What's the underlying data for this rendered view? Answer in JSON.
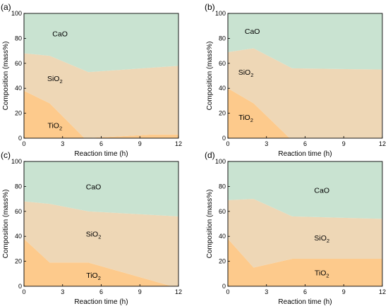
{
  "chart_data": [
    {
      "type": "area",
      "panel_label": "(a)",
      "xlabel": "Reaction time (h)",
      "ylabel": "Composition (mass%)",
      "xlim": [
        0,
        12
      ],
      "ylim": [
        0,
        100
      ],
      "xticks": [
        0,
        3,
        6,
        9,
        12
      ],
      "yticks": [
        0,
        20,
        40,
        60,
        80,
        100
      ],
      "stack_order": [
        "TiO2",
        "SiO2",
        "CaO"
      ],
      "series": [
        {
          "name": "TiO2",
          "label_main": "TiO",
          "label_sub": "2",
          "color": "#FDCA8C",
          "x": [
            0,
            2,
            4.7,
            10,
            12
          ],
          "values": [
            38,
            28,
            0,
            3,
            3
          ]
        },
        {
          "name": "SiO2",
          "label_main": "SiO",
          "label_sub": "2",
          "color": "#EED7B6",
          "x": [
            0,
            2,
            5,
            12
          ],
          "values": [
            68,
            66,
            53,
            58
          ]
        },
        {
          "name": "CaO",
          "label_main": "CaO",
          "label_sub": "",
          "color": "#C9E3D1",
          "x": [
            0,
            12
          ],
          "values": [
            100,
            100
          ]
        }
      ],
      "labels_at": {
        "CaO": [
          2.8,
          84
        ],
        "SiO2": [
          2.4,
          48
        ],
        "TiO2": [
          2.4,
          10.5
        ]
      }
    },
    {
      "type": "area",
      "panel_label": "(b)",
      "xlabel": "Reaction time (h)",
      "ylabel": "Composition (mass%)",
      "xlim": [
        0,
        12
      ],
      "ylim": [
        0,
        100
      ],
      "xticks": [
        0,
        3,
        6,
        9,
        12
      ],
      "yticks": [
        0,
        20,
        40,
        60,
        80,
        100
      ],
      "stack_order": [
        "TiO2",
        "SiO2",
        "CaO"
      ],
      "series": [
        {
          "name": "TiO2",
          "label_main": "TiO",
          "label_sub": "2",
          "color": "#FDCA8C",
          "x": [
            0,
            2,
            4.8,
            12
          ],
          "values": [
            40,
            28,
            0,
            0
          ]
        },
        {
          "name": "SiO2",
          "label_main": "SiO",
          "label_sub": "2",
          "color": "#EED7B6",
          "x": [
            0,
            2,
            5,
            12
          ],
          "values": [
            69,
            72,
            56,
            55
          ]
        },
        {
          "name": "CaO",
          "label_main": "CaO",
          "label_sub": "",
          "color": "#C9E3D1",
          "x": [
            0,
            12
          ],
          "values": [
            100,
            100
          ]
        }
      ],
      "labels_at": {
        "CaO": [
          1.9,
          86
        ],
        "SiO2": [
          1.4,
          53
        ],
        "TiO2": [
          1.4,
          17
        ]
      }
    },
    {
      "type": "area",
      "panel_label": "(c)",
      "xlabel": "Reaction time (h)",
      "ylabel": "Composition (mass%)",
      "xlim": [
        0,
        12
      ],
      "ylim": [
        0,
        100
      ],
      "xticks": [
        0,
        3,
        6,
        9,
        12
      ],
      "yticks": [
        0,
        20,
        40,
        60,
        80,
        100
      ],
      "stack_order": [
        "TiO2",
        "SiO2",
        "CaO"
      ],
      "series": [
        {
          "name": "TiO2",
          "label_main": "TiO",
          "label_sub": "2",
          "color": "#FDCA8C",
          "x": [
            0,
            2,
            5,
            11.5,
            12
          ],
          "values": [
            38,
            19,
            19,
            0,
            0
          ]
        },
        {
          "name": "SiO2",
          "label_main": "SiO",
          "label_sub": "2",
          "color": "#EED7B6",
          "x": [
            0,
            2,
            5,
            12
          ],
          "values": [
            68,
            66,
            60,
            56
          ]
        },
        {
          "name": "CaO",
          "label_main": "CaO",
          "label_sub": "",
          "color": "#C9E3D1",
          "x": [
            0,
            12
          ],
          "values": [
            100,
            100
          ]
        }
      ],
      "labels_at": {
        "CaO": [
          5.4,
          80
        ],
        "SiO2": [
          5.4,
          42
        ],
        "TiO2": [
          5.4,
          9
        ]
      }
    },
    {
      "type": "area",
      "panel_label": "(d)",
      "xlabel": "Reaction time (h)",
      "ylabel": "Composition (mass%)",
      "xlim": [
        0,
        12
      ],
      "ylim": [
        0,
        100
      ],
      "xticks": [
        0,
        3,
        6,
        9,
        12
      ],
      "yticks": [
        0,
        20,
        40,
        60,
        80,
        100
      ],
      "stack_order": [
        "TiO2",
        "SiO2",
        "CaO"
      ],
      "series": [
        {
          "name": "TiO2",
          "label_main": "TiO",
          "label_sub": "2",
          "color": "#FDCA8C",
          "x": [
            0,
            2,
            5,
            12
          ],
          "values": [
            38,
            15,
            22,
            22
          ]
        },
        {
          "name": "SiO2",
          "label_main": "SiO",
          "label_sub": "2",
          "color": "#EED7B6",
          "x": [
            0,
            2,
            5,
            12
          ],
          "values": [
            69,
            70,
            56,
            54
          ]
        },
        {
          "name": "CaO",
          "label_main": "CaO",
          "label_sub": "",
          "color": "#C9E3D1",
          "x": [
            0,
            12
          ],
          "values": [
            100,
            100
          ]
        }
      ],
      "labels_at": {
        "CaO": [
          7.3,
          77
        ],
        "SiO2": [
          7.3,
          39
        ],
        "TiO2": [
          7.3,
          11
        ]
      }
    }
  ]
}
